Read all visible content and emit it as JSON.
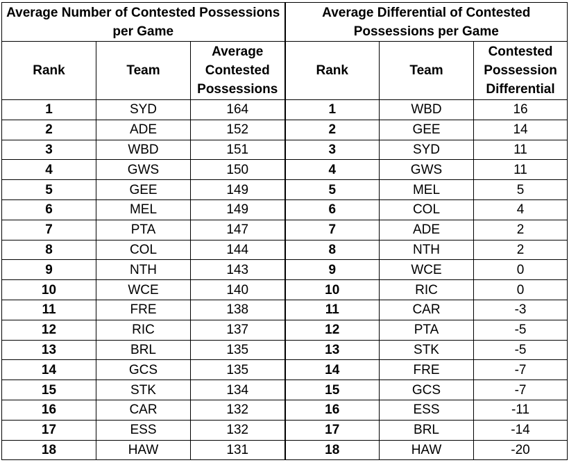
{
  "groups": {
    "left_title": "Average Number of Contested Possessions per Game",
    "right_title": "Average Differential of Contested Possessions per Game"
  },
  "columns": {
    "left": {
      "rank": "Rank",
      "team": "Team",
      "value": "Average Contested Possessions"
    },
    "right": {
      "rank": "Rank",
      "team": "Team",
      "value": "Contested Possession Differential"
    }
  },
  "left_rows": [
    {
      "rank": "1",
      "team": "SYD",
      "value": "164"
    },
    {
      "rank": "2",
      "team": "ADE",
      "value": "152"
    },
    {
      "rank": "3",
      "team": "WBD",
      "value": "151"
    },
    {
      "rank": "4",
      "team": "GWS",
      "value": "150"
    },
    {
      "rank": "5",
      "team": "GEE",
      "value": "149"
    },
    {
      "rank": "6",
      "team": "MEL",
      "value": "149"
    },
    {
      "rank": "7",
      "team": "PTA",
      "value": "147"
    },
    {
      "rank": "8",
      "team": "COL",
      "value": "144"
    },
    {
      "rank": "9",
      "team": "NTH",
      "value": "143"
    },
    {
      "rank": "10",
      "team": "WCE",
      "value": "140"
    },
    {
      "rank": "11",
      "team": "FRE",
      "value": "138"
    },
    {
      "rank": "12",
      "team": "RIC",
      "value": "137"
    },
    {
      "rank": "13",
      "team": "BRL",
      "value": "135"
    },
    {
      "rank": "14",
      "team": "GCS",
      "value": "135"
    },
    {
      "rank": "15",
      "team": "STK",
      "value": "134"
    },
    {
      "rank": "16",
      "team": "CAR",
      "value": "132"
    },
    {
      "rank": "17",
      "team": "ESS",
      "value": "132"
    },
    {
      "rank": "18",
      "team": "HAW",
      "value": "131"
    }
  ],
  "right_rows": [
    {
      "rank": "1",
      "team": "WBD",
      "value": "16"
    },
    {
      "rank": "2",
      "team": "GEE",
      "value": "14"
    },
    {
      "rank": "3",
      "team": "SYD",
      "value": "11"
    },
    {
      "rank": "4",
      "team": "GWS",
      "value": "11"
    },
    {
      "rank": "5",
      "team": "MEL",
      "value": "5"
    },
    {
      "rank": "6",
      "team": "COL",
      "value": "4"
    },
    {
      "rank": "7",
      "team": "ADE",
      "value": "2"
    },
    {
      "rank": "8",
      "team": "NTH",
      "value": "2"
    },
    {
      "rank": "9",
      "team": "WCE",
      "value": "0"
    },
    {
      "rank": "10",
      "team": "RIC",
      "value": "0"
    },
    {
      "rank": "11",
      "team": "CAR",
      "value": "-3"
    },
    {
      "rank": "12",
      "team": "PTA",
      "value": "-5"
    },
    {
      "rank": "13",
      "team": "STK",
      "value": "-5"
    },
    {
      "rank": "14",
      "team": "FRE",
      "value": "-7"
    },
    {
      "rank": "15",
      "team": "GCS",
      "value": "-7"
    },
    {
      "rank": "16",
      "team": "ESS",
      "value": "-11"
    },
    {
      "rank": "17",
      "team": "BRL",
      "value": "-14"
    },
    {
      "rank": "18",
      "team": "HAW",
      "value": "-20"
    }
  ]
}
